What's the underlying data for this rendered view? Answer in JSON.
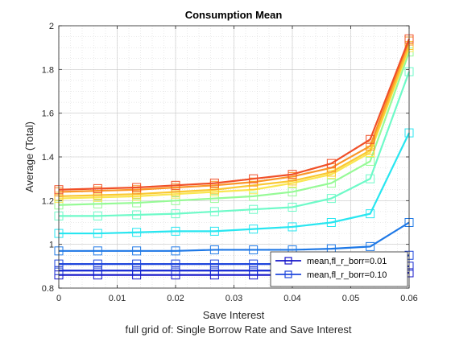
{
  "chart_data": {
    "type": "line",
    "title": "Consumption Mean",
    "xlabel": "Save Interest",
    "ylabel": "Average (Total)",
    "caption": "full grid of: Single Borrow Rate and Save Interest",
    "xlim": [
      0,
      0.06
    ],
    "ylim": [
      0.8,
      2.0
    ],
    "xticks": [
      0,
      0.01,
      0.02,
      0.03,
      0.04,
      0.05,
      0.06
    ],
    "xtick_labels": [
      "0",
      "0.01",
      "0.02",
      "0.03",
      "0.04",
      "0.05",
      "0.06"
    ],
    "yticks": [
      0.8,
      1.0,
      1.2,
      1.4,
      1.6,
      1.8,
      2.0
    ],
    "ytick_labels": [
      "0.8",
      "1",
      "1.2",
      "1.4",
      "1.6",
      "1.8",
      "2"
    ],
    "grid": true,
    "minor_grid": true,
    "marker": "square",
    "x": [
      0,
      0.00667,
      0.01333,
      0.02,
      0.02667,
      0.03333,
      0.04,
      0.04667,
      0.05333,
      0.06
    ],
    "series": [
      {
        "color": "#1414c8",
        "values": [
          0.86,
          0.86,
          0.86,
          0.86,
          0.86,
          0.86,
          0.86,
          0.86,
          0.86,
          0.87
        ]
      },
      {
        "color": "#1428d2",
        "values": [
          0.88,
          0.88,
          0.88,
          0.88,
          0.88,
          0.88,
          0.88,
          0.88,
          0.88,
          0.9
        ]
      },
      {
        "color": "#1e46dc",
        "values": [
          0.91,
          0.91,
          0.91,
          0.91,
          0.91,
          0.91,
          0.91,
          0.91,
          0.91,
          0.95
        ]
      },
      {
        "color": "#1e78e6",
        "values": [
          0.97,
          0.97,
          0.97,
          0.97,
          0.975,
          0.975,
          0.975,
          0.98,
          0.99,
          1.1
        ]
      },
      {
        "color": "#28e6f0",
        "values": [
          1.05,
          1.05,
          1.055,
          1.06,
          1.06,
          1.07,
          1.08,
          1.1,
          1.14,
          1.51
        ]
      },
      {
        "color": "#6efac8",
        "values": [
          1.13,
          1.13,
          1.135,
          1.14,
          1.15,
          1.16,
          1.17,
          1.21,
          1.3,
          1.79
        ]
      },
      {
        "color": "#96fa96",
        "values": [
          1.18,
          1.185,
          1.19,
          1.2,
          1.21,
          1.22,
          1.24,
          1.28,
          1.38,
          1.88
        ]
      },
      {
        "color": "#fae650",
        "values": [
          1.21,
          1.215,
          1.22,
          1.23,
          1.24,
          1.25,
          1.28,
          1.32,
          1.42,
          1.9
        ]
      },
      {
        "color": "#fac832",
        "values": [
          1.22,
          1.225,
          1.23,
          1.24,
          1.25,
          1.27,
          1.29,
          1.33,
          1.43,
          1.91
        ]
      },
      {
        "color": "#fa9628",
        "values": [
          1.24,
          1.245,
          1.25,
          1.26,
          1.27,
          1.285,
          1.31,
          1.35,
          1.45,
          1.93
        ]
      },
      {
        "color": "#f05028",
        "values": [
          1.25,
          1.255,
          1.26,
          1.27,
          1.28,
          1.3,
          1.32,
          1.37,
          1.48,
          1.94
        ]
      }
    ],
    "legend": {
      "location": "bottom-right",
      "entries": [
        {
          "label": "mean,fl_r_borr=0.01",
          "color": "#1414c8"
        },
        {
          "label": "mean,fl_r_borr=0.10",
          "color": "#1e46dc"
        }
      ]
    }
  }
}
